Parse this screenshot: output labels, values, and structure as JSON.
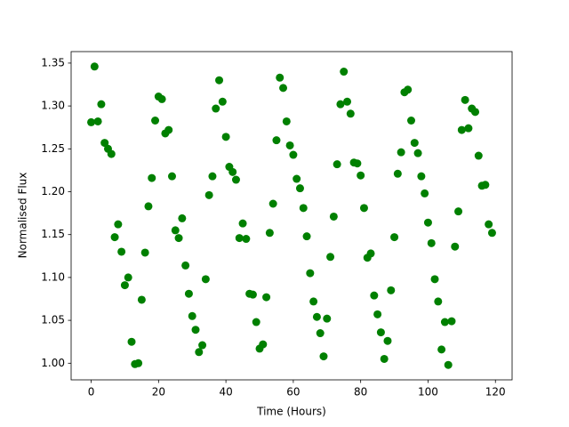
{
  "chart_data": {
    "type": "scatter",
    "x_label": "Time (Hours)",
    "y_label": "Normalised Flux",
    "color": "#008000",
    "x": [
      0,
      1,
      2,
      3,
      4,
      5,
      6,
      7,
      8,
      9,
      10,
      11,
      12,
      13,
      14,
      15,
      16,
      17,
      18,
      19,
      20,
      21,
      22,
      23,
      24,
      25,
      26,
      27,
      28,
      29,
      30,
      31,
      32,
      33,
      34,
      35,
      36,
      37,
      38,
      39,
      40,
      41,
      42,
      43,
      44,
      45,
      46,
      47,
      48,
      49,
      50,
      51,
      52,
      53,
      54,
      55,
      56,
      57,
      58,
      59,
      60,
      61,
      62,
      63,
      64,
      65,
      66,
      67,
      68,
      69,
      70,
      71,
      72,
      73,
      74,
      75,
      76,
      77,
      78,
      79,
      80,
      81,
      82,
      83,
      84,
      85,
      86,
      87,
      88,
      89,
      90,
      91,
      92,
      93,
      94,
      95,
      96,
      97,
      98,
      99,
      100,
      101,
      102,
      103,
      104,
      105,
      106,
      107,
      108,
      109,
      110,
      111,
      112,
      113,
      114,
      115,
      116,
      117,
      118,
      119
    ],
    "values": [
      1.281,
      1.346,
      1.282,
      1.302,
      1.257,
      1.25,
      1.244,
      1.147,
      1.162,
      1.13,
      1.091,
      1.1,
      1.025,
      0.999,
      1.0,
      1.074,
      1.129,
      1.183,
      1.216,
      1.283,
      1.311,
      1.308,
      1.268,
      1.272,
      1.218,
      1.155,
      1.146,
      1.169,
      1.114,
      1.081,
      1.055,
      1.039,
      1.013,
      1.021,
      1.098,
      1.196,
      1.218,
      1.297,
      1.33,
      1.305,
      1.264,
      1.229,
      1.223,
      1.214,
      1.146,
      1.163,
      1.145,
      1.081,
      1.08,
      1.048,
      1.017,
      1.022,
      1.077,
      1.152,
      1.186,
      1.26,
      1.333,
      1.321,
      1.282,
      1.254,
      1.243,
      1.215,
      1.204,
      1.181,
      1.148,
      1.105,
      1.072,
      1.054,
      1.035,
      1.008,
      1.052,
      1.124,
      1.171,
      1.232,
      1.302,
      1.34,
      1.305,
      1.291,
      1.234,
      1.233,
      1.219,
      1.181,
      1.123,
      1.128,
      1.079,
      1.057,
      1.036,
      1.005,
      1.026,
      1.085,
      1.147,
      1.221,
      1.246,
      1.316,
      1.319,
      1.283,
      1.257,
      1.245,
      1.218,
      1.198,
      1.164,
      1.14,
      1.098,
      1.072,
      1.016,
      1.048,
      0.998,
      1.049,
      1.136,
      1.177,
      1.272,
      1.307,
      1.274,
      1.297,
      1.293,
      1.242,
      1.207,
      1.208,
      1.162,
      1.152
    ],
    "xlim": [
      -5.95,
      124.95
    ],
    "xticks": [
      0,
      20,
      40,
      60,
      80,
      100,
      120
    ],
    "ylim": [
      0.9806,
      1.3634
    ],
    "yticks": [
      {
        "value": 1.0,
        "label": "1.00"
      },
      1.05,
      {
        "value": 1.1,
        "label": "1.10"
      },
      1.15,
      {
        "value": 1.2,
        "label": "1.20"
      },
      1.25,
      {
        "value": 1.3,
        "label": "1.30"
      },
      1.35
    ],
    "grid": false
  }
}
